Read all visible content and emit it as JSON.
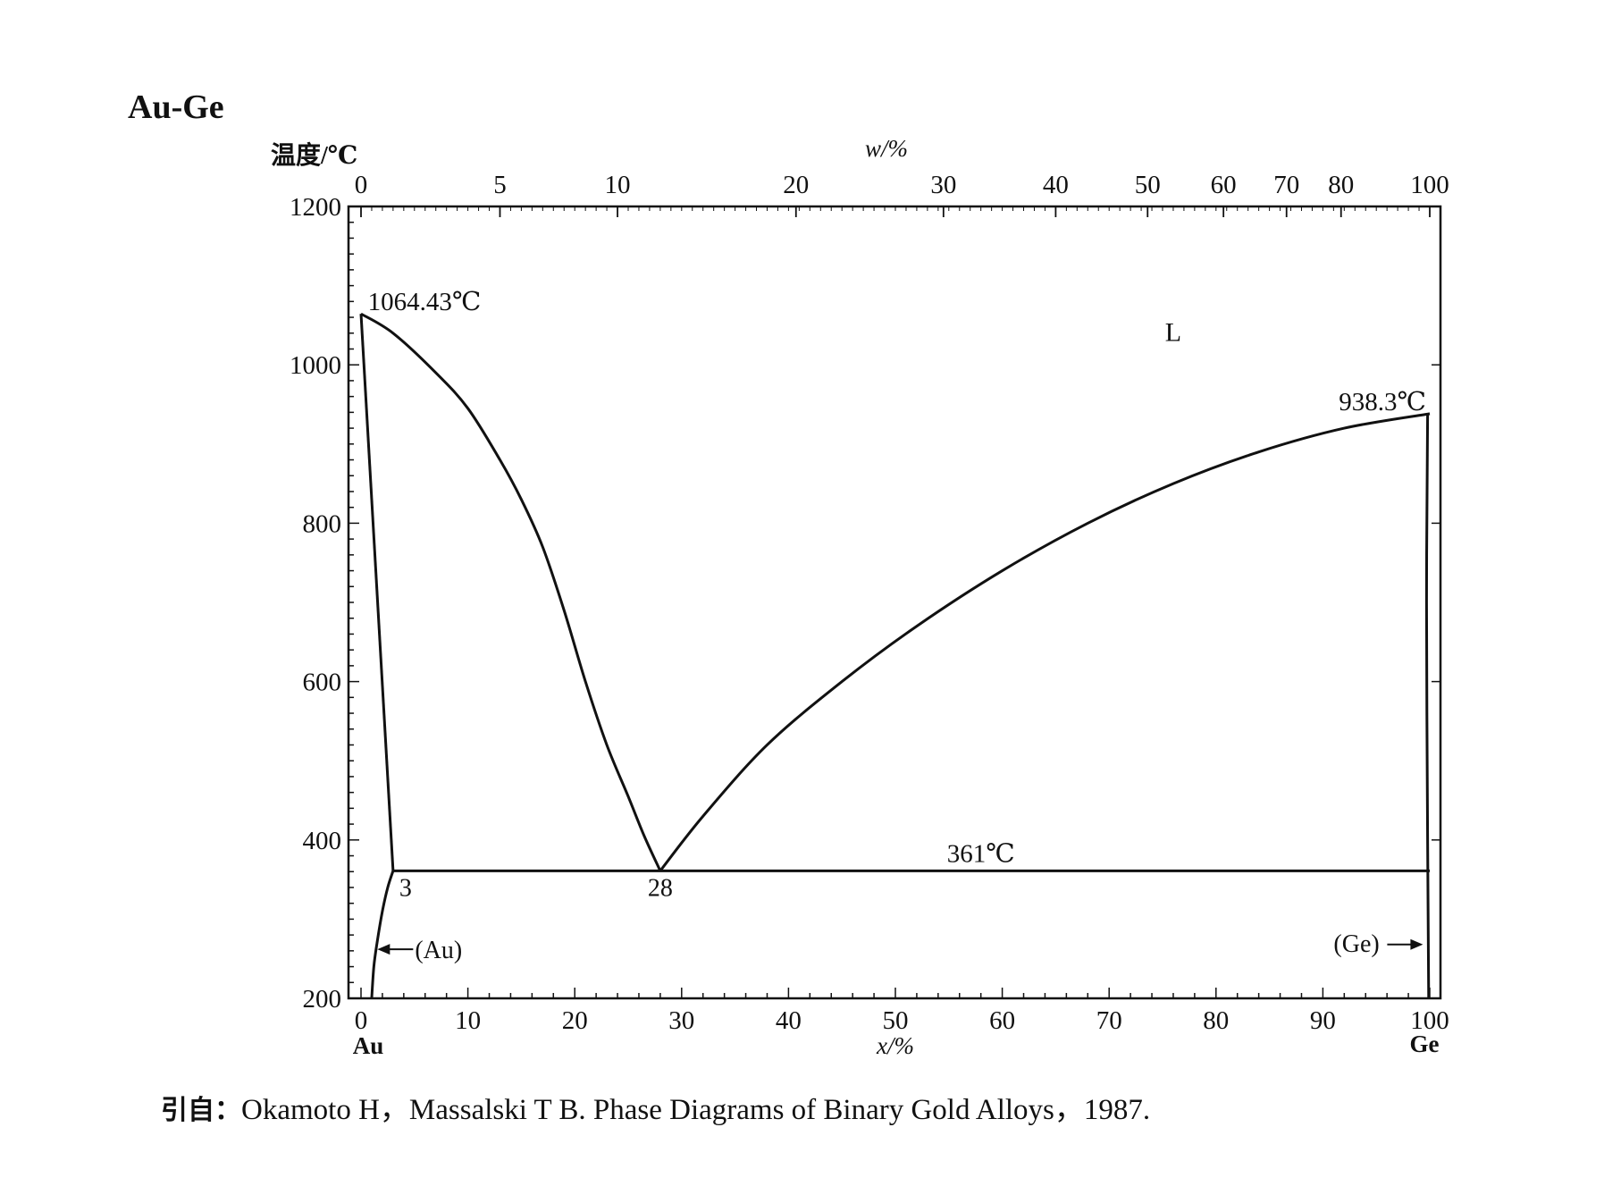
{
  "title": "Au-Ge",
  "citation": {
    "prefix": "引自：",
    "text": "Okamoto H，Massalski T B. Phase Diagrams of Binary Gold Alloys，1987."
  },
  "chart_data": {
    "type": "line",
    "title": "Au-Ge",
    "ylabel": "温度/℃",
    "xlabel": "x/%",
    "x2label": "w/%",
    "ylim": [
      200,
      1200
    ],
    "xlim": [
      0,
      100
    ],
    "grid": false,
    "y_ticks": [
      200,
      400,
      600,
      800,
      1000,
      1200
    ],
    "x_ticks": [
      0,
      10,
      20,
      30,
      40,
      50,
      60,
      70,
      80,
      90,
      100
    ],
    "x_tick_label_left": "0",
    "x_tick_label_right": "100",
    "x_end_labels": {
      "left": "Au",
      "right": "Ge"
    },
    "w_ticks": [
      {
        "w": 0,
        "x": 0.0,
        "label": "0"
      },
      {
        "w": 5,
        "x": 13.0,
        "label": "5"
      },
      {
        "w": 10,
        "x": 24.0,
        "label": "10"
      },
      {
        "w": 20,
        "x": 40.7,
        "label": "20"
      },
      {
        "w": 30,
        "x": 54.5,
        "label": "30"
      },
      {
        "w": 40,
        "x": 65.0,
        "label": "40"
      },
      {
        "w": 50,
        "x": 73.6,
        "label": "50"
      },
      {
        "w": 60,
        "x": 80.7,
        "label": "60"
      },
      {
        "w": 70,
        "x": 86.6,
        "label": "70"
      },
      {
        "w": 80,
        "x": 91.7,
        "label": "80"
      },
      {
        "w": 100,
        "x": 100.0,
        "label": "100"
      }
    ],
    "series": [
      {
        "role": "liquidus-au-side",
        "points": [
          [
            0,
            1064.43
          ],
          [
            3,
            1040
          ],
          [
            7,
            990
          ],
          [
            10,
            945
          ],
          [
            13,
            880
          ],
          [
            15,
            830
          ],
          [
            17,
            770
          ],
          [
            19,
            690
          ],
          [
            21,
            600
          ],
          [
            23,
            520
          ],
          [
            25,
            455
          ],
          [
            26.5,
            405
          ],
          [
            28,
            361
          ]
        ]
      },
      {
        "role": "liquidus-ge-side",
        "points": [
          [
            28,
            361
          ],
          [
            32,
            430
          ],
          [
            38,
            520
          ],
          [
            45,
            600
          ],
          [
            52,
            670
          ],
          [
            60,
            740
          ],
          [
            68,
            800
          ],
          [
            76,
            850
          ],
          [
            84,
            890
          ],
          [
            92,
            920
          ],
          [
            100,
            938.3
          ]
        ]
      },
      {
        "role": "solidus-au",
        "points": [
          [
            0,
            1064.43
          ],
          [
            3,
            361
          ]
        ]
      },
      {
        "role": "solvus-au",
        "points": [
          [
            3,
            361
          ],
          [
            2.5,
            340
          ],
          [
            2.0,
            310
          ],
          [
            1.5,
            270
          ],
          [
            1.2,
            240
          ],
          [
            1.0,
            200
          ]
        ]
      },
      {
        "role": "eutectic",
        "points": [
          [
            3,
            361
          ],
          [
            100,
            361
          ]
        ]
      },
      {
        "role": "ge-solid",
        "points": [
          [
            99.8,
            938.3
          ],
          [
            99.7,
            700
          ],
          [
            99.8,
            400
          ],
          [
            99.9,
            200
          ]
        ]
      }
    ],
    "annotations": [
      {
        "text": "1064.43℃",
        "x": 0.3,
        "y": 1064.43
      },
      {
        "text": "938.3℃",
        "x": 100,
        "y": 938.3
      },
      {
        "text": "L",
        "x": 76,
        "y": 1030
      },
      {
        "text": "361℃",
        "x": 58,
        "y": 361
      },
      {
        "text": "3",
        "x": 3,
        "y": 361
      },
      {
        "text": "28",
        "x": 28,
        "y": 361
      },
      {
        "text": "(Au)",
        "x": 1.2,
        "y": 262
      },
      {
        "text": "(Ge)",
        "x": 99.7,
        "y": 268
      }
    ]
  }
}
